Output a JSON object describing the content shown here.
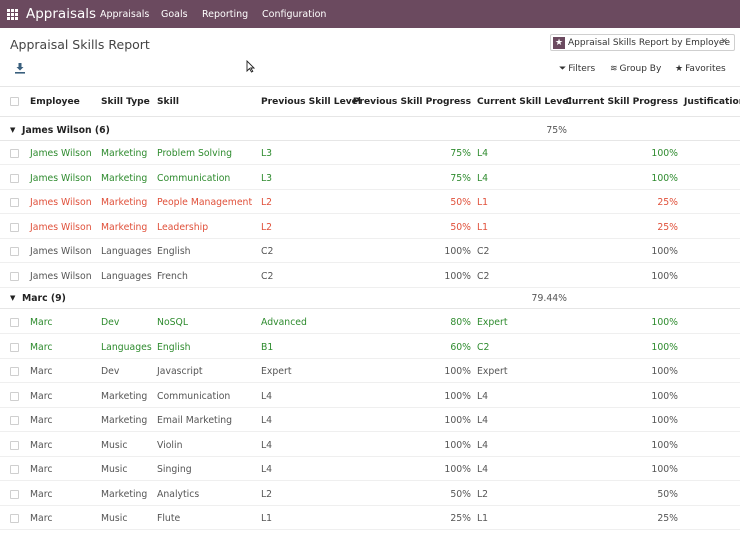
{
  "navbar": {
    "brand": "Appraisals",
    "menu": [
      "Appraisals",
      "Goals",
      "Reporting",
      "Configuration"
    ]
  },
  "page": {
    "title": "Appraisal Skills Report",
    "facet_label": "Appraisal Skills Report by Employee",
    "filters": "Filters",
    "group_by": "Group By",
    "favorites": "Favorites"
  },
  "columns": [
    "Employee",
    "Skill Type",
    "Skill",
    "Previous Skill Level",
    "Previous Skill Progress",
    "Current Skill Level",
    "Current Skill Progress",
    "Justification"
  ],
  "colors": {
    "navbar": "#6b4a5f",
    "improved": "#2e8b2e",
    "declined": "#e0503a",
    "neutral": "#555555"
  },
  "groups": [
    {
      "label": "James Wilson (6)",
      "aggregate": "75%",
      "rows": [
        {
          "employee": "James Wilson",
          "skill_type": "Marketing",
          "skill": "Problem Solving",
          "prev_level": "L3",
          "prev_progress": "75%",
          "cur_level": "L4",
          "cur_progress": "100%",
          "status": "green"
        },
        {
          "employee": "James Wilson",
          "skill_type": "Marketing",
          "skill": "Communication",
          "prev_level": "L3",
          "prev_progress": "75%",
          "cur_level": "L4",
          "cur_progress": "100%",
          "status": "green"
        },
        {
          "employee": "James Wilson",
          "skill_type": "Marketing",
          "skill": "People Management",
          "prev_level": "L2",
          "prev_progress": "50%",
          "cur_level": "L1",
          "cur_progress": "25%",
          "status": "red"
        },
        {
          "employee": "James Wilson",
          "skill_type": "Marketing",
          "skill": "Leadership",
          "prev_level": "L2",
          "prev_progress": "50%",
          "cur_level": "L1",
          "cur_progress": "25%",
          "status": "red"
        },
        {
          "employee": "James Wilson",
          "skill_type": "Languages",
          "skill": "English",
          "prev_level": "C2",
          "prev_progress": "100%",
          "cur_level": "C2",
          "cur_progress": "100%",
          "status": "gray"
        },
        {
          "employee": "James Wilson",
          "skill_type": "Languages",
          "skill": "French",
          "prev_level": "C2",
          "prev_progress": "100%",
          "cur_level": "C2",
          "cur_progress": "100%",
          "status": "gray"
        }
      ]
    },
    {
      "label": "Marc (9)",
      "aggregate": "79.44%",
      "rows": [
        {
          "employee": "Marc",
          "skill_type": "Dev",
          "skill": "NoSQL",
          "prev_level": "Advanced",
          "prev_progress": "80%",
          "cur_level": "Expert",
          "cur_progress": "100%",
          "status": "green"
        },
        {
          "employee": "Marc",
          "skill_type": "Languages",
          "skill": "English",
          "prev_level": "B1",
          "prev_progress": "60%",
          "cur_level": "C2",
          "cur_progress": "100%",
          "status": "green"
        },
        {
          "employee": "Marc",
          "skill_type": "Dev",
          "skill": "Javascript",
          "prev_level": "Expert",
          "prev_progress": "100%",
          "cur_level": "Expert",
          "cur_progress": "100%",
          "status": "gray"
        },
        {
          "employee": "Marc",
          "skill_type": "Marketing",
          "skill": "Communication",
          "prev_level": "L4",
          "prev_progress": "100%",
          "cur_level": "L4",
          "cur_progress": "100%",
          "status": "gray"
        },
        {
          "employee": "Marc",
          "skill_type": "Marketing",
          "skill": "Email Marketing",
          "prev_level": "L4",
          "prev_progress": "100%",
          "cur_level": "L4",
          "cur_progress": "100%",
          "status": "gray"
        },
        {
          "employee": "Marc",
          "skill_type": "Music",
          "skill": "Violin",
          "prev_level": "L4",
          "prev_progress": "100%",
          "cur_level": "L4",
          "cur_progress": "100%",
          "status": "gray"
        },
        {
          "employee": "Marc",
          "skill_type": "Music",
          "skill": "Singing",
          "prev_level": "L4",
          "prev_progress": "100%",
          "cur_level": "L4",
          "cur_progress": "100%",
          "status": "gray"
        },
        {
          "employee": "Marc",
          "skill_type": "Marketing",
          "skill": "Analytics",
          "prev_level": "L2",
          "prev_progress": "50%",
          "cur_level": "L2",
          "cur_progress": "50%",
          "status": "gray"
        },
        {
          "employee": "Marc",
          "skill_type": "Music",
          "skill": "Flute",
          "prev_level": "L1",
          "prev_progress": "25%",
          "cur_level": "L1",
          "cur_progress": "25%",
          "status": "gray"
        }
      ]
    }
  ]
}
